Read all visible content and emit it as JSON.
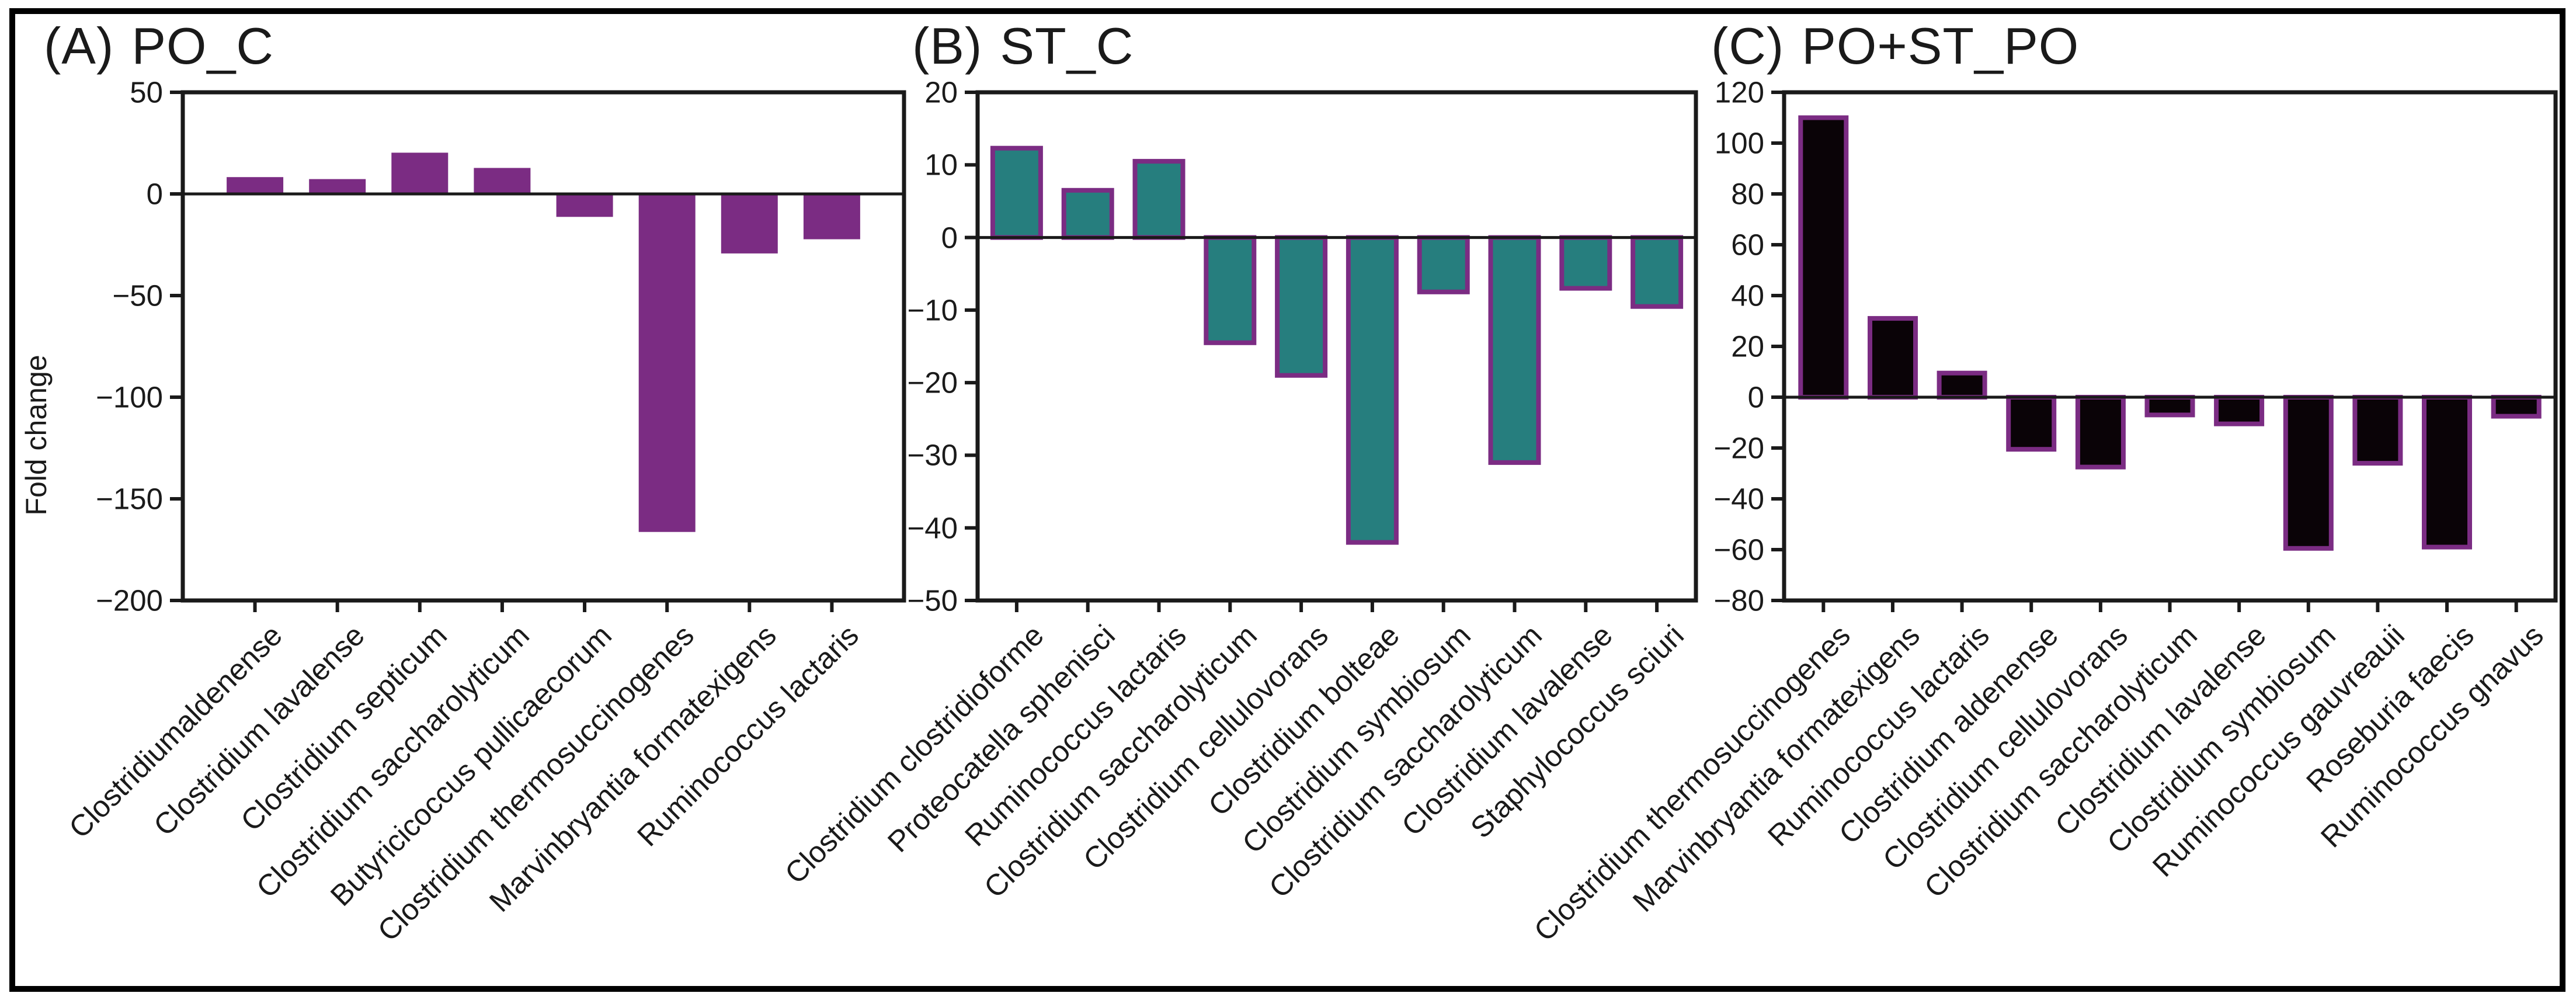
{
  "figure": {
    "background": "#ffffff",
    "border_color": "#000000",
    "axis_color": "#1a1a1a",
    "ylabel": "Fold change"
  },
  "chart_data": [
    {
      "type": "bar",
      "panel_label": "(A)",
      "title": "PO_C",
      "ylabel": "Fold change",
      "ylim": [
        -200,
        50
      ],
      "yticks": [
        50,
        0,
        -50,
        -100,
        -150,
        -200
      ],
      "grid": false,
      "legend": null,
      "bar_fill": "#7b2c83",
      "bar_edge": "#7b2c83",
      "categories": [
        "Clostridiumaldenense",
        "Clostridium lavalense",
        "Clostridium septicum",
        "Clostridium saccharolyticum",
        "Butyricicoccus pullicaecorum",
        "Clostridium thermosuccinogenes",
        "Marvinbryantia formatexigens",
        "Ruminococcus lactaris"
      ],
      "values": [
        8,
        7,
        20,
        12.5,
        -11,
        -166,
        -29,
        -22
      ]
    },
    {
      "type": "bar",
      "panel_label": "(B)",
      "title": "ST_C",
      "ylabel": "",
      "ylim": [
        -50,
        20
      ],
      "yticks": [
        20,
        10,
        0,
        -10,
        -20,
        -30,
        -40,
        -50
      ],
      "grid": false,
      "legend": null,
      "bar_fill": "#267e7e",
      "bar_edge": "#7b2c83",
      "categories": [
        "Clostridium clostridioforme",
        "Proteocatella sphenisci",
        "Ruminococcus lactaris",
        "Clostridium saccharolyticum",
        "Clostridium cellulovorans",
        "Clostridium bolteae",
        "Clostridium symbiosum",
        "Clostridium saccharolyticum",
        "Clostridium lavalense",
        "Staphylococcus sciuri"
      ],
      "values": [
        12.3,
        6.5,
        10.5,
        -14.5,
        -19,
        -42,
        -7.5,
        -31,
        -7,
        -9.5
      ]
    },
    {
      "type": "bar",
      "panel_label": "(C)",
      "title": "PO+ST_PO",
      "ylabel": "",
      "ylim": [
        -80,
        120
      ],
      "yticks": [
        120,
        100,
        80,
        60,
        40,
        20,
        0,
        -20,
        -40,
        -60,
        -80
      ],
      "grid": false,
      "legend": null,
      "bar_fill": "#0a0307",
      "bar_edge": "#7b2c83",
      "categories": [
        "Clostridium thermosuccinogenes",
        "Marvinbryantia formatexigens",
        "Ruminococcus lactaris",
        "Clostridium aldenense",
        "Clostridium cellulovorans",
        "Clostridium saccharolyticum",
        "Clostridium lavalense",
        "Clostridium symbiosum",
        "Ruminococcus gauvreauii",
        "Roseburia faecis",
        "Ruminococcus gnavus"
      ],
      "values": [
        110,
        31,
        9.5,
        -20.5,
        -27.5,
        -7,
        -10.5,
        -59.5,
        -26,
        -59,
        -7.5
      ]
    }
  ]
}
